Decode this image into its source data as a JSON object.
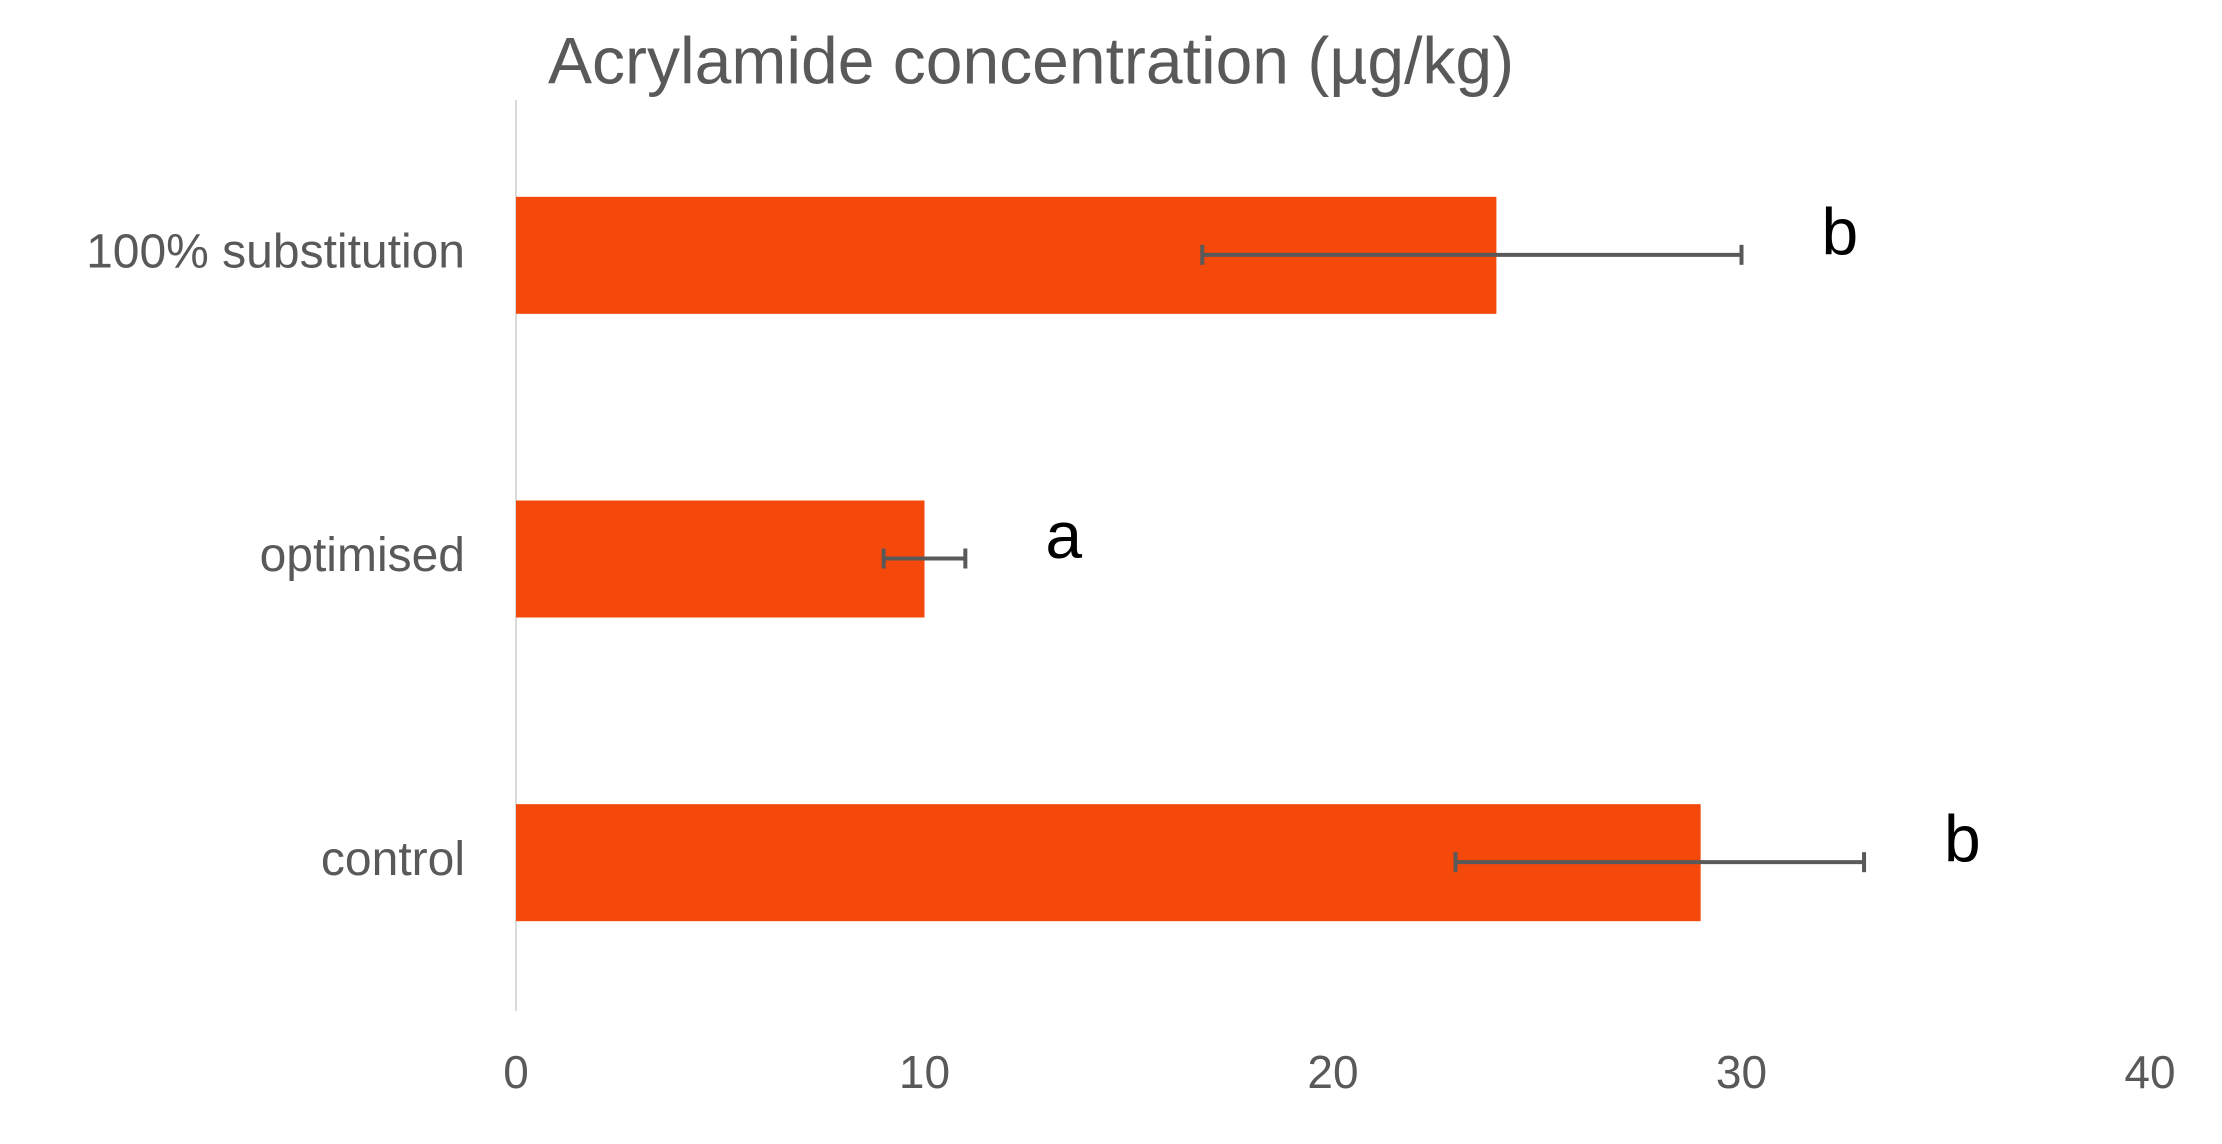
{
  "chart_data": {
    "type": "hbar",
    "title": "Acrylamide concentration (µg/kg)",
    "categories": [
      "100% substitution",
      "optimised",
      "control"
    ],
    "values": [
      24,
      10,
      29
    ],
    "error_minus": [
      7.2,
      1,
      6
    ],
    "error_plus": [
      6,
      1,
      4
    ],
    "annotations": [
      "b",
      "a",
      "b"
    ],
    "color": "#f4490b",
    "xlim": [
      0,
      40
    ],
    "xticks": [
      0,
      10,
      20,
      30,
      40
    ],
    "grid": false
  }
}
